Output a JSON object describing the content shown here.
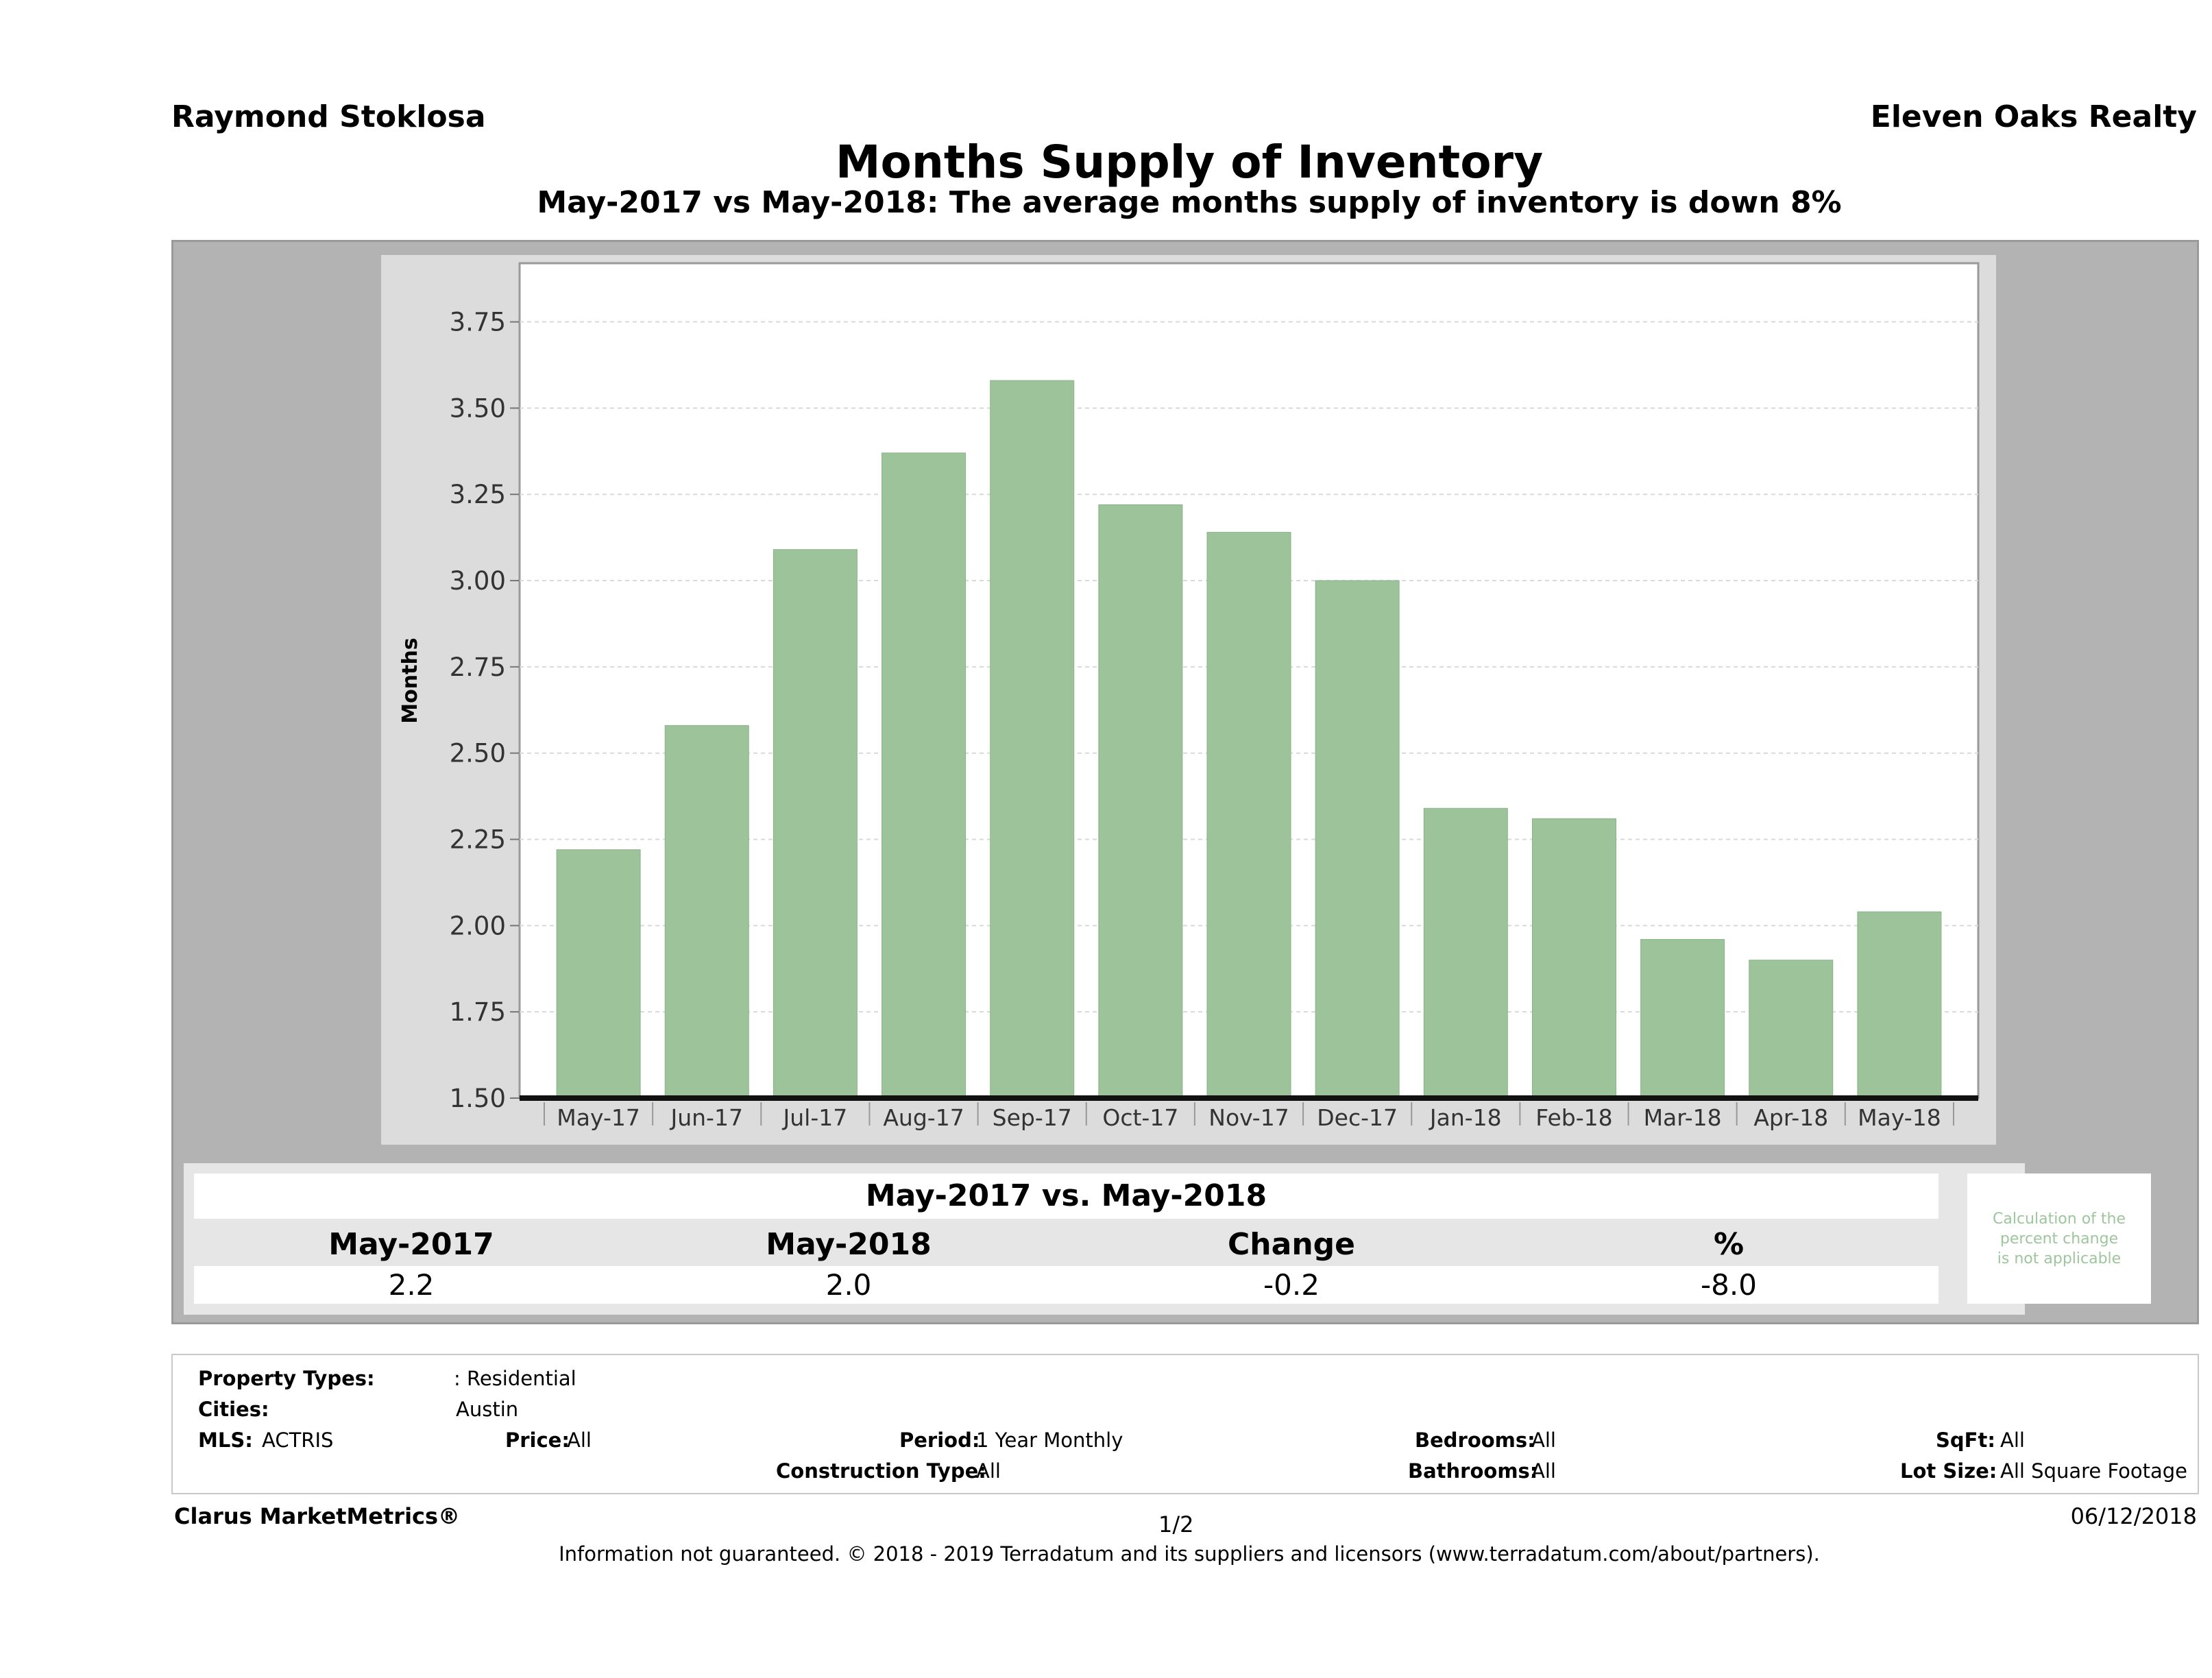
{
  "header": {
    "agent": "Raymond Stoklosa",
    "company": "Eleven Oaks Realty",
    "title": "Months Supply of Inventory",
    "subtitle": "May-2017 vs May-2018: The average months supply of inventory is down 8%"
  },
  "chart_data": {
    "type": "bar",
    "ylabel": "Months",
    "xlabel": "",
    "ylim": [
      1.5,
      3.92
    ],
    "yticks": [
      "1.50",
      "1.75",
      "2.00",
      "2.25",
      "2.50",
      "2.75",
      "3.00",
      "3.25",
      "3.50",
      "3.75"
    ],
    "grid": true,
    "bar_color": "#9dc39a",
    "categories": [
      "May-17",
      "Jun-17",
      "Jul-17",
      "Aug-17",
      "Sep-17",
      "Oct-17",
      "Nov-17",
      "Dec-17",
      "Jan-18",
      "Feb-18",
      "Mar-18",
      "Apr-18",
      "May-18"
    ],
    "values": [
      2.22,
      2.58,
      3.09,
      3.37,
      3.58,
      3.22,
      3.14,
      3.0,
      2.34,
      2.31,
      1.96,
      1.9,
      2.04
    ]
  },
  "comparison": {
    "heading": "May-2017 vs. May-2018",
    "columns": [
      "May-2017",
      "May-2018",
      "Change",
      "%"
    ],
    "values": [
      "2.2",
      "2.0",
      "-0.2",
      "-8.0"
    ],
    "note_lines": [
      "Calculation of the",
      "percent change",
      "is not applicable"
    ]
  },
  "filters": {
    "property_types_label": "Property Types:",
    "property_types_value": ": Residential",
    "cities_label": "Cities:",
    "cities_value": "Austin",
    "mls_label": "MLS:",
    "mls_value": "ACTRIS",
    "price_label": "Price:",
    "price_value": "All",
    "period_label": "Period:",
    "period_value": "1 Year Monthly",
    "construction_label": "Construction Type:",
    "construction_value": "All",
    "bedrooms_label": "Bedrooms:",
    "bedrooms_value": "All",
    "bathrooms_label": "Bathrooms:",
    "bathrooms_value": "All",
    "sqft_label": "SqFt:",
    "sqft_value": "All",
    "lotsize_label": "Lot Size:",
    "lotsize_value": "All Square Footage"
  },
  "footer": {
    "brand": "Clarus MarketMetrics®",
    "page": "1/2",
    "date": "06/12/2018",
    "disclaimer": "Information not guaranteed. © 2018 - 2019 Terradatum and its suppliers and licensors (www.terradatum.com/about/partners)."
  }
}
